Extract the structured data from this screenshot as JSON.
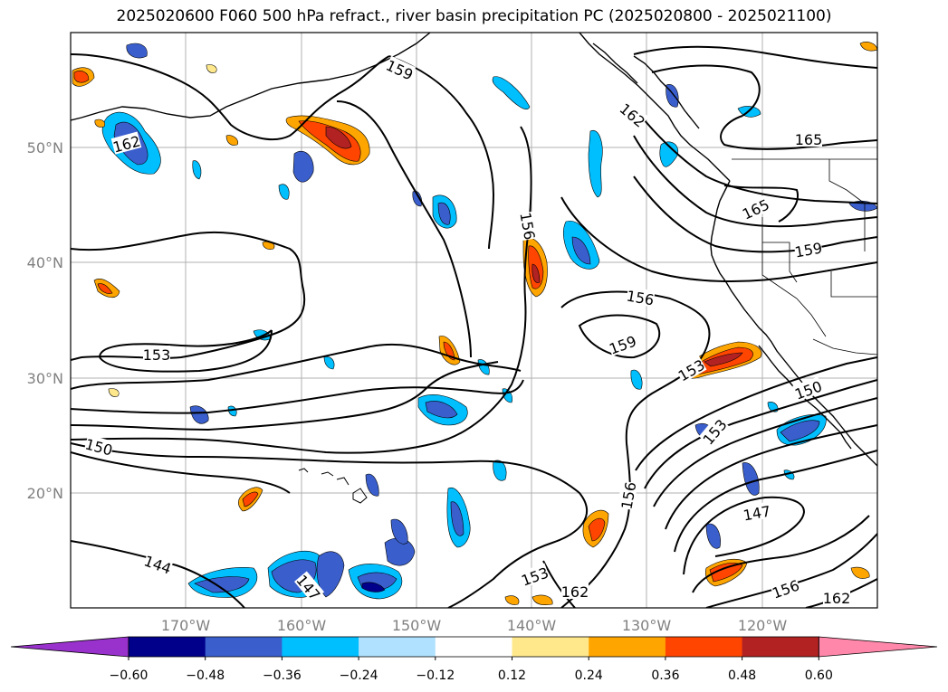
{
  "title": "2025020600 F060 500 hPa refract., river basin precipitation PC (2025020800 - 2025021100)",
  "map": {
    "projection": "lat-lon",
    "extent_lon": [
      -180,
      -110
    ],
    "extent_lat": [
      10,
      60
    ],
    "lat_labels": [
      "20°N",
      "30°N",
      "40°N",
      "50°N"
    ],
    "lon_labels": [
      "170°W",
      "160°W",
      "150°W",
      "140°W",
      "130°W",
      "120°W"
    ],
    "contour_labels": [
      {
        "id": "c159a",
        "text": "159"
      },
      {
        "id": "c162a",
        "text": "162"
      },
      {
        "id": "c165a",
        "text": "165"
      },
      {
        "id": "c165b",
        "text": "165"
      },
      {
        "id": "c159b",
        "text": "159"
      },
      {
        "id": "c162b",
        "text": "162"
      },
      {
        "id": "c156a",
        "text": "156"
      },
      {
        "id": "c156b",
        "text": "156"
      },
      {
        "id": "c159c",
        "text": "159"
      },
      {
        "id": "c153a",
        "text": "153"
      },
      {
        "id": "c153b",
        "text": "153"
      },
      {
        "id": "c150a",
        "text": "150"
      },
      {
        "id": "c150b",
        "text": "150"
      },
      {
        "id": "c153c",
        "text": "153"
      },
      {
        "id": "c156c",
        "text": "156"
      },
      {
        "id": "c147a",
        "text": "147"
      },
      {
        "id": "c144a",
        "text": "144"
      },
      {
        "id": "c147b",
        "text": "147"
      },
      {
        "id": "c153d",
        "text": "153"
      },
      {
        "id": "c162c",
        "text": "162"
      },
      {
        "id": "c156d",
        "text": "156"
      },
      {
        "id": "c162d",
        "text": "162"
      }
    ]
  },
  "colorbar": {
    "ticks": [
      "−0.60",
      "−0.48",
      "−0.36",
      "−0.24",
      "−0.12",
      "0.12",
      "0.24",
      "0.36",
      "0.48",
      "0.60"
    ],
    "colors": [
      "#9932cc",
      "#00008b",
      "#3a5fcd",
      "#00bfff",
      "#b0e2ff",
      "#ffffff",
      "#ffe88c",
      "#ffa500",
      "#ff4500",
      "#b22222",
      "#ff88aa"
    ]
  }
}
